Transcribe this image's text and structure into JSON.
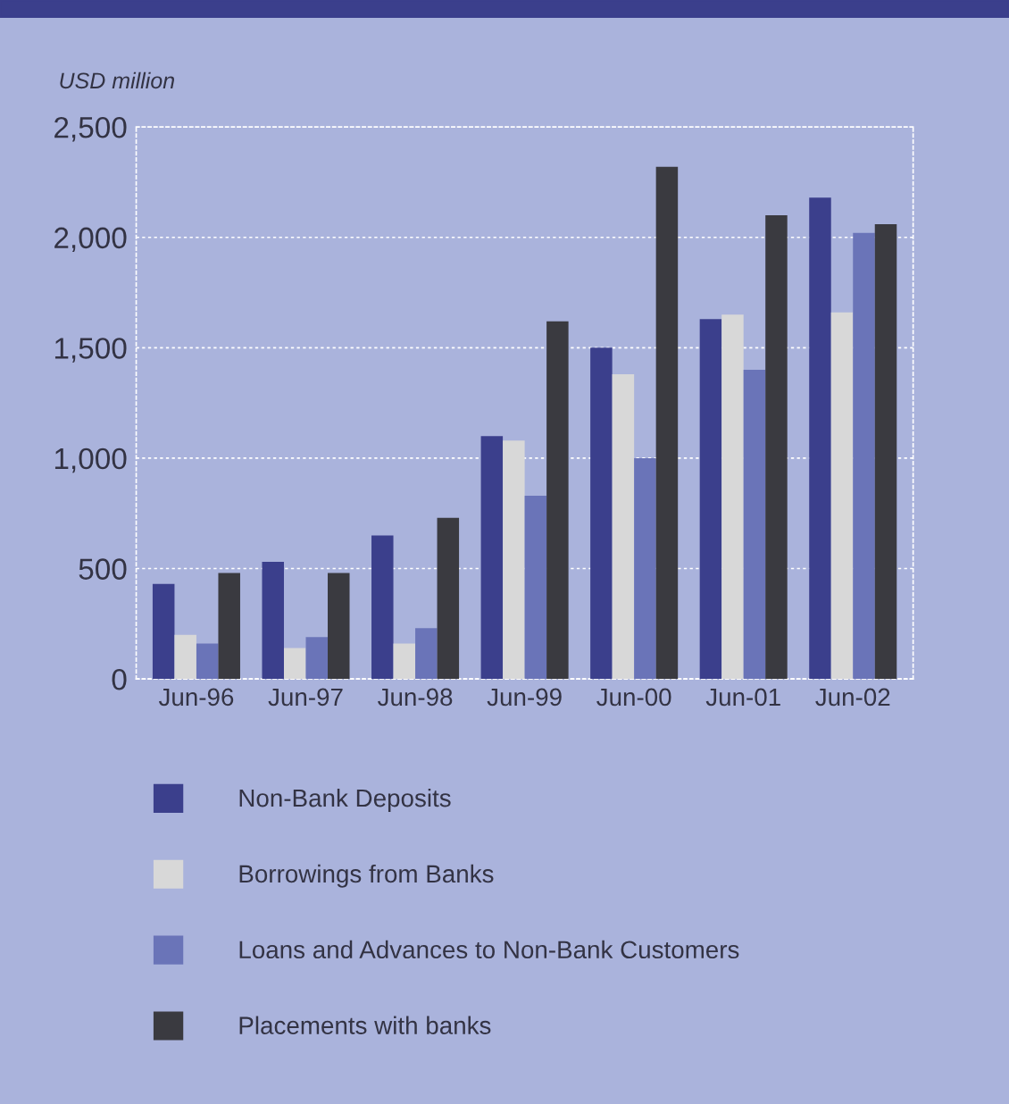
{
  "chart_data": {
    "type": "bar",
    "ylabel": "USD million",
    "categories": [
      "Jun-96",
      "Jun-97",
      "Jun-98",
      "Jun-99",
      "Jun-00",
      "Jun-01",
      "Jun-02"
    ],
    "series": [
      {
        "name": "Non-Bank Deposits",
        "color": "#3b3f8c",
        "values": [
          430,
          530,
          650,
          1100,
          1500,
          1630,
          2180
        ]
      },
      {
        "name": "Borrowings from Banks",
        "color": "#d8d8d8",
        "values": [
          200,
          140,
          160,
          1080,
          1380,
          1650,
          1660
        ]
      },
      {
        "name": "Loans and Advances to Non-Bank Customers",
        "color": "#6a74b8",
        "values": [
          160,
          190,
          230,
          830,
          1000,
          1400,
          2020
        ]
      },
      {
        "name": "Placements with banks",
        "color": "#3a3a40",
        "values": [
          480,
          480,
          730,
          1620,
          2320,
          2100,
          2060
        ]
      }
    ],
    "ylim": [
      0,
      2500
    ],
    "yticks": [
      0,
      {
        "value": 500,
        "label": "500"
      },
      {
        "value": 1000,
        "label": "1,000"
      },
      {
        "value": 1500,
        "label": "1,500"
      },
      {
        "value": 2000,
        "label": "2,000"
      },
      {
        "value": 2500,
        "label": "2,500"
      }
    ],
    "grid": "y",
    "legend": "bottom"
  }
}
